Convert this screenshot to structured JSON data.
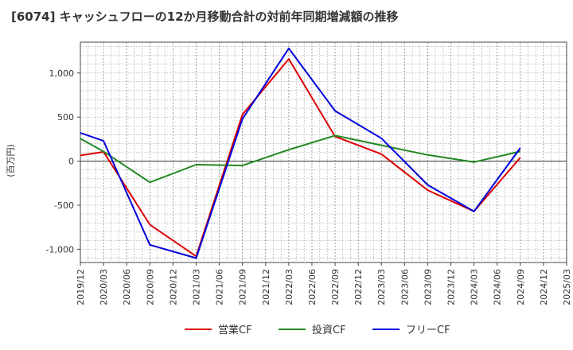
{
  "chart_data": {
    "type": "line",
    "title": "[6074]  キャッシュフローの12か月移動合計の対前年同期増減額の推移",
    "ylabel": "(百万円)",
    "xlabel": "",
    "ylim": [
      -1150,
      1350
    ],
    "yticks": [
      1000,
      500,
      0,
      -500,
      -1000
    ],
    "ytick_labels": [
      "1,000",
      "500",
      "0",
      "-500",
      "-1,000"
    ],
    "x_tick_labels": [
      "2019/12",
      "2020/03",
      "2020/06",
      "2020/09",
      "2020/12",
      "2021/03",
      "2021/06",
      "2021/09",
      "2021/12",
      "2022/03",
      "2022/06",
      "2022/09",
      "2022/12",
      "2023/03",
      "2023/06",
      "2023/09",
      "2023/12",
      "2024/03",
      "2024/06",
      "2024/09",
      "2024/12",
      "2025/03"
    ],
    "grid": true,
    "legend_position": "bottom",
    "series": [
      {
        "name": "営業CF",
        "color": "#dd0000",
        "points": [
          [
            "2019/12",
            65
          ],
          [
            "2020/03",
            105
          ],
          [
            "2020/09",
            -720
          ],
          [
            "2021/03",
            -1080
          ],
          [
            "2021/09",
            530
          ],
          [
            "2022/03",
            1160
          ],
          [
            "2022/09",
            280
          ],
          [
            "2023/03",
            80
          ],
          [
            "2023/09",
            -330
          ],
          [
            "2024/03",
            -570
          ],
          [
            "2024/09",
            40
          ]
        ]
      },
      {
        "name": "投資CF",
        "color": "#228822",
        "points": [
          [
            "2019/12",
            255
          ],
          [
            "2020/03",
            110
          ],
          [
            "2020/09",
            -240
          ],
          [
            "2021/03",
            -40
          ],
          [
            "2021/09",
            -50
          ],
          [
            "2022/03",
            130
          ],
          [
            "2022/09",
            290
          ],
          [
            "2023/03",
            180
          ],
          [
            "2023/09",
            70
          ],
          [
            "2024/03",
            -10
          ],
          [
            "2024/09",
            110
          ]
        ]
      },
      {
        "name": "フリーCF",
        "color": "#0000dd",
        "points": [
          [
            "2019/12",
            320
          ],
          [
            "2020/03",
            230
          ],
          [
            "2020/09",
            -950
          ],
          [
            "2021/03",
            -1100
          ],
          [
            "2021/09",
            480
          ],
          [
            "2022/03",
            1280
          ],
          [
            "2022/09",
            570
          ],
          [
            "2023/03",
            260
          ],
          [
            "2023/09",
            -270
          ],
          [
            "2024/03",
            -570
          ],
          [
            "2024/09",
            150
          ]
        ]
      }
    ]
  }
}
